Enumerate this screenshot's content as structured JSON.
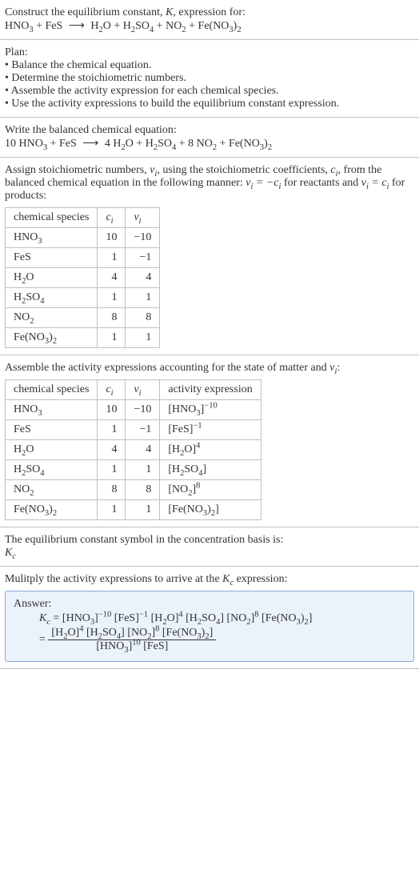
{
  "intro": {
    "line1": "Construct the equilibrium constant, ",
    "K": "K",
    "line1b": ", expression for:",
    "equation_lhs": "HNO<sub>3</sub> + FeS",
    "arrow": "⟶",
    "equation_rhs": "H<sub>2</sub>O + H<sub>2</sub>SO<sub>4</sub> + NO<sub>2</sub> + Fe(NO<sub>3</sub>)<sub>2</sub>"
  },
  "plan": {
    "title": "Plan:",
    "items": [
      "• Balance the chemical equation.",
      "• Determine the stoichiometric numbers.",
      "• Assemble the activity expression for each chemical species.",
      "• Use the activity expressions to build the equilibrium constant expression."
    ]
  },
  "balanced": {
    "title": "Write the balanced chemical equation:",
    "lhs": "10 HNO<sub>3</sub> + FeS",
    "arrow": "⟶",
    "rhs": "4 H<sub>2</sub>O + H<sub>2</sub>SO<sub>4</sub> + 8 NO<sub>2</sub> + Fe(NO<sub>3</sub>)<sub>2</sub>"
  },
  "stoich": {
    "intro_a": "Assign stoichiometric numbers, ",
    "nu_i": "ν<sub>i</sub>",
    "intro_b": ", using the stoichiometric coefficients, ",
    "c_i": "c<sub>i</sub>",
    "intro_c": ", from the balanced chemical equation in the following manner: ",
    "eq1": "ν<sub>i</sub> = −c<sub>i</sub>",
    "intro_d": " for reactants and ",
    "eq2": "ν<sub>i</sub> = c<sub>i</sub>",
    "intro_e": " for products:",
    "headers": [
      "chemical species",
      "c<sub>i</sub>",
      "ν<sub>i</sub>"
    ],
    "rows": [
      {
        "sp": "HNO<sub>3</sub>",
        "c": "10",
        "nu": "−10"
      },
      {
        "sp": "FeS",
        "c": "1",
        "nu": "−1"
      },
      {
        "sp": "H<sub>2</sub>O",
        "c": "4",
        "nu": "4"
      },
      {
        "sp": "H<sub>2</sub>SO<sub>4</sub>",
        "c": "1",
        "nu": "1"
      },
      {
        "sp": "NO<sub>2</sub>",
        "c": "8",
        "nu": "8"
      },
      {
        "sp": "Fe(NO<sub>3</sub>)<sub>2</sub>",
        "c": "1",
        "nu": "1"
      }
    ]
  },
  "activity": {
    "title_a": "Assemble the activity expressions accounting for the state of matter and ",
    "nu_i": "ν<sub>i</sub>",
    "title_b": ":",
    "headers": [
      "chemical species",
      "c<sub>i</sub>",
      "ν<sub>i</sub>",
      "activity expression"
    ],
    "rows": [
      {
        "sp": "HNO<sub>3</sub>",
        "c": "10",
        "nu": "−10",
        "act": "[HNO<sub>3</sub>]<sup>−10</sup>"
      },
      {
        "sp": "FeS",
        "c": "1",
        "nu": "−1",
        "act": "[FeS]<sup>−1</sup>"
      },
      {
        "sp": "H<sub>2</sub>O",
        "c": "4",
        "nu": "4",
        "act": "[H<sub>2</sub>O]<sup>4</sup>"
      },
      {
        "sp": "H<sub>2</sub>SO<sub>4</sub>",
        "c": "1",
        "nu": "1",
        "act": "[H<sub>2</sub>SO<sub>4</sub>]"
      },
      {
        "sp": "NO<sub>2</sub>",
        "c": "8",
        "nu": "8",
        "act": "[NO<sub>2</sub>]<sup>8</sup>"
      },
      {
        "sp": "Fe(NO<sub>3</sub>)<sub>2</sub>",
        "c": "1",
        "nu": "1",
        "act": "[Fe(NO<sub>3</sub>)<sub>2</sub>]"
      }
    ]
  },
  "symbol": {
    "line": "The equilibrium constant symbol in the concentration basis is:",
    "Kc": "K<sub>c</sub>"
  },
  "multiply": {
    "line_a": "Mulitply the activity expressions to arrive at the ",
    "Kc": "K<sub>c</sub>",
    "line_b": " expression:"
  },
  "answer": {
    "label": "Answer:",
    "Kc": "K<sub>c</sub>",
    "rhs1": "[HNO<sub>3</sub>]<sup>−10</sup> [FeS]<sup>−1</sup> [H<sub>2</sub>O]<sup>4</sup> [H<sub>2</sub>SO<sub>4</sub>] [NO<sub>2</sub>]<sup>8</sup> [Fe(NO<sub>3</sub>)<sub>2</sub>]",
    "frac_num": "[H<sub>2</sub>O]<sup>4</sup> [H<sub>2</sub>SO<sub>4</sub>] [NO<sub>2</sub>]<sup>8</sup> [Fe(NO<sub>3</sub>)<sub>2</sub>]",
    "frac_den": "[HNO<sub>3</sub>]<sup>10</sup> [FeS]"
  }
}
